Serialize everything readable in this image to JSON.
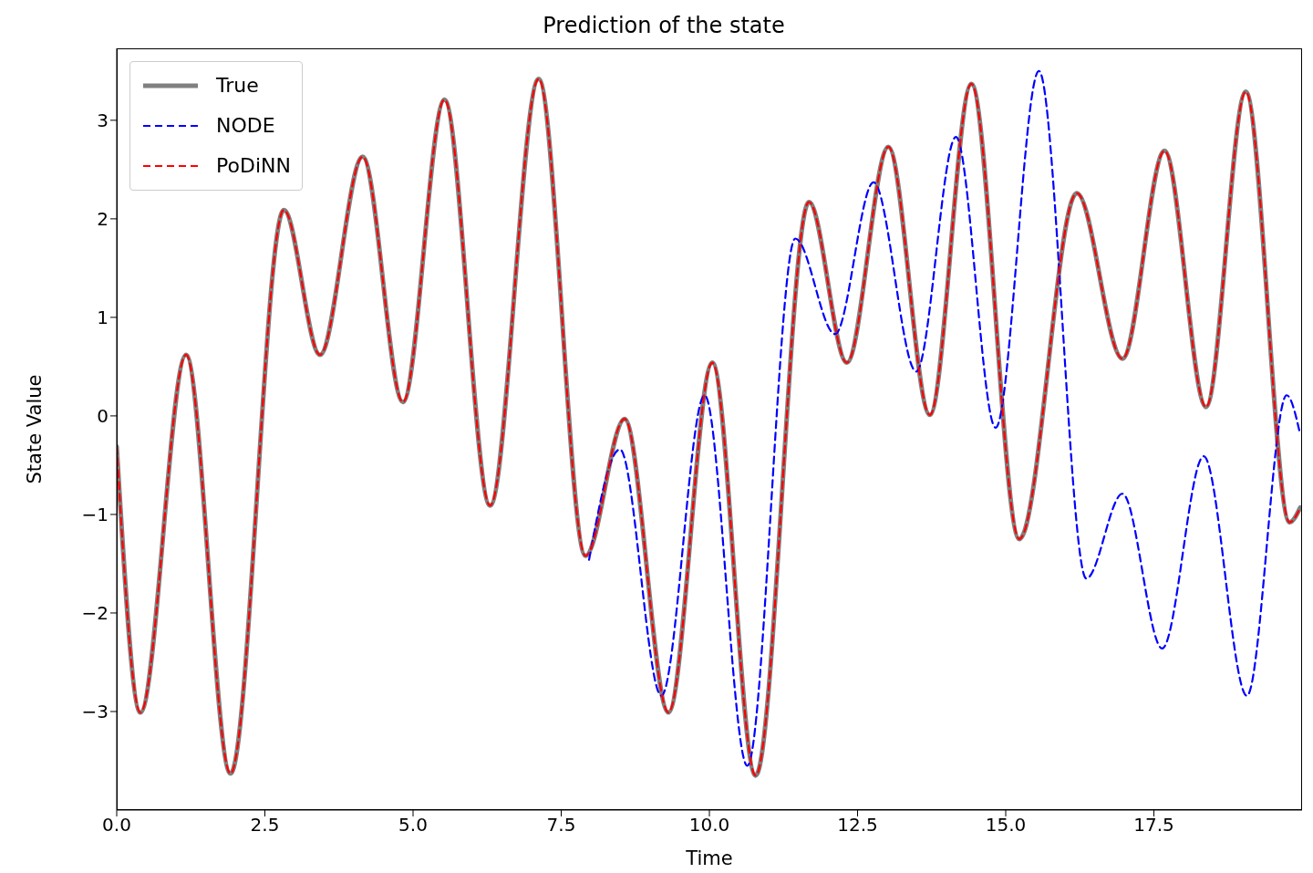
{
  "chart_data": {
    "type": "line",
    "title": "Prediction of the state",
    "xlabel": "Time",
    "ylabel": "State Value",
    "xlim": [
      0,
      20
    ],
    "ylim": [
      -4.0,
      3.73
    ],
    "xticks": [
      {
        "value": 0,
        "label": "0.0"
      },
      2.5,
      {
        "value": 5,
        "label": "5.0"
      },
      7.5,
      {
        "value": 10,
        "label": "10.0"
      },
      12.5,
      {
        "value": 15,
        "label": "15.0"
      },
      17.5
    ],
    "yticks": [
      {
        "value": -3,
        "label": "−3"
      },
      {
        "value": -2,
        "label": "−2"
      },
      {
        "value": -1,
        "label": "−1"
      },
      0,
      1,
      2,
      3
    ],
    "grid": false,
    "legend": "top left",
    "marker": "none",
    "series": [
      {
        "name": "True",
        "color": "#808080",
        "line_style": "solid",
        "x": [
          0,
          0.4,
          1.17,
          1.92,
          2.82,
          3.43,
          4.15,
          4.83,
          5.53,
          6.3,
          7.12,
          7.91,
          8.57,
          9.31,
          10.05,
          10.78,
          11.68,
          12.32,
          13.02,
          13.72,
          14.42,
          15.23,
          16.2,
          16.97,
          17.68,
          18.38,
          19.05,
          19.79,
          19.97
        ],
        "values": [
          -0.31,
          -3.01,
          0.62,
          -3.63,
          2.09,
          0.62,
          2.63,
          0.14,
          3.21,
          -0.91,
          3.42,
          -1.42,
          -0.03,
          -3.01,
          0.54,
          -3.65,
          2.17,
          0.54,
          2.73,
          0.01,
          3.37,
          -1.25,
          2.26,
          0.58,
          2.69,
          0.09,
          3.29,
          -1.08,
          -0.93
        ]
      },
      {
        "name": "NODE",
        "color": "#0000ff",
        "line_style": "dashed",
        "x": [
          7.97,
          8.49,
          9.19,
          9.92,
          10.64,
          11.45,
          12.12,
          12.77,
          13.49,
          14.16,
          14.83,
          15.56,
          16.36,
          16.97,
          17.64,
          18.34,
          19.07,
          19.74,
          19.97
        ],
        "values": [
          -1.46,
          -0.34,
          -2.84,
          0.21,
          -3.55,
          1.8,
          0.83,
          2.37,
          0.45,
          2.83,
          -0.12,
          3.5,
          -1.65,
          -0.79,
          -2.36,
          -0.41,
          -2.84,
          0.21,
          -0.19
        ]
      },
      {
        "name": "PoDiNN",
        "color": "#ff0000",
        "line_style": "dashed",
        "x": [
          0,
          0.4,
          1.17,
          1.92,
          2.82,
          3.43,
          4.15,
          4.83,
          5.53,
          6.3,
          7.12,
          7.91,
          8.57,
          9.31,
          10.05,
          10.78,
          11.68,
          12.32,
          13.02,
          13.72,
          14.42,
          15.23,
          16.2,
          16.97,
          17.68,
          18.38,
          19.05,
          19.79,
          19.97
        ],
        "values": [
          -0.31,
          -3.01,
          0.62,
          -3.63,
          2.09,
          0.62,
          2.63,
          0.14,
          3.21,
          -0.91,
          3.42,
          -1.42,
          -0.03,
          -3.01,
          0.54,
          -3.65,
          2.17,
          0.54,
          2.73,
          0.01,
          3.37,
          -1.25,
          2.26,
          0.58,
          2.69,
          0.09,
          3.29,
          -1.08,
          -0.93
        ]
      }
    ]
  }
}
